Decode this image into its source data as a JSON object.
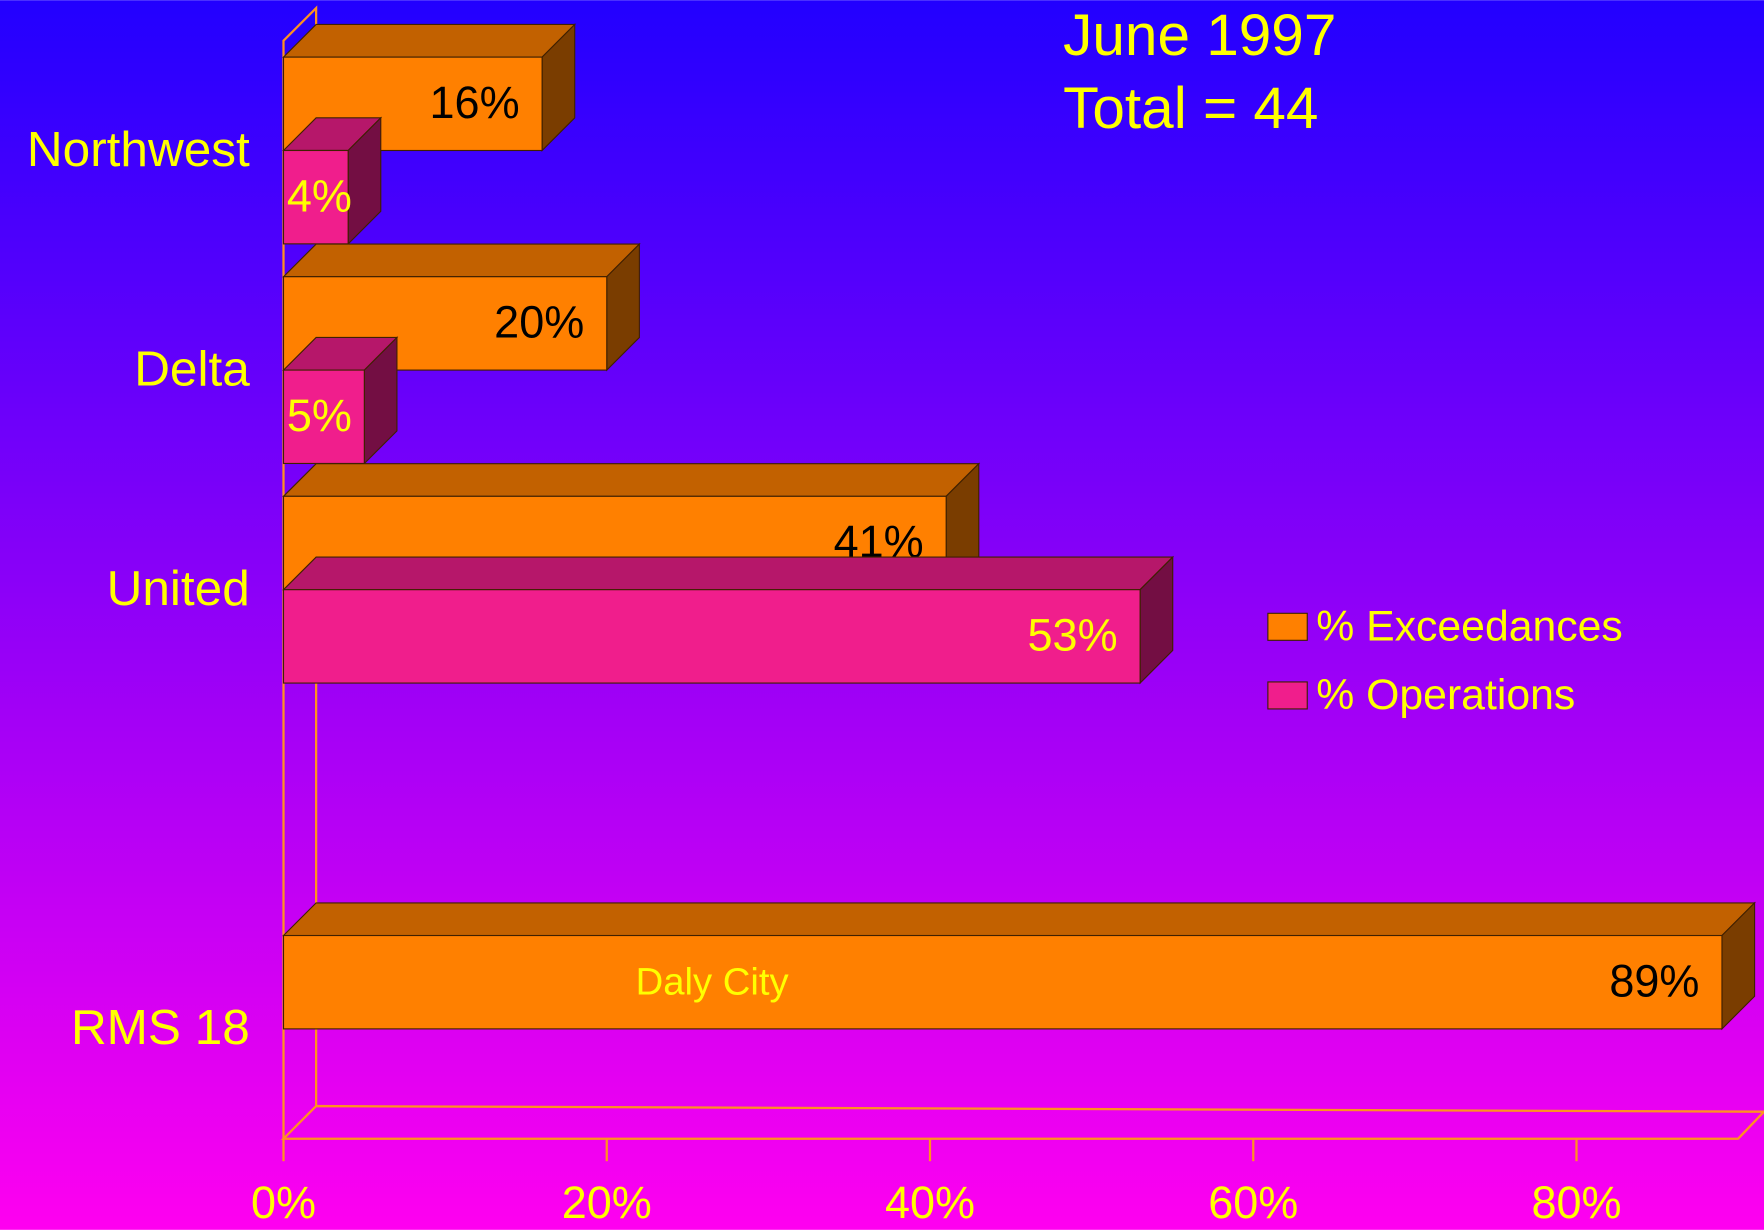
{
  "chart_data": {
    "type": "bar3d_horizontal",
    "title": "June 1997",
    "subtitle": "Total = 44",
    "annotations": [
      "Daly City"
    ],
    "categories": [
      "Northwest",
      "Delta",
      "United",
      null,
      "RMS 18"
    ],
    "series": [
      {
        "name": "% Exceedances",
        "color": "#ff8000",
        "values": [
          16,
          20,
          41,
          null,
          89
        ],
        "value_labels": [
          "16%",
          "20%",
          "41%",
          null,
          "89%"
        ]
      },
      {
        "name": "% Operations",
        "color": "#f01e8c",
        "values": [
          4,
          5,
          53,
          null,
          null
        ],
        "value_labels": [
          "4%",
          "5%",
          "53%",
          null,
          null
        ]
      }
    ],
    "xlim": [
      0,
      90
    ],
    "xticks": [
      {
        "value": 0,
        "label": "0%"
      },
      {
        "value": 20,
        "label": "20%"
      },
      {
        "value": 40,
        "label": "40%"
      },
      {
        "value": 60,
        "label": "60%"
      },
      {
        "value": 80,
        "label": "80%"
      }
    ],
    "legend": "right"
  }
}
